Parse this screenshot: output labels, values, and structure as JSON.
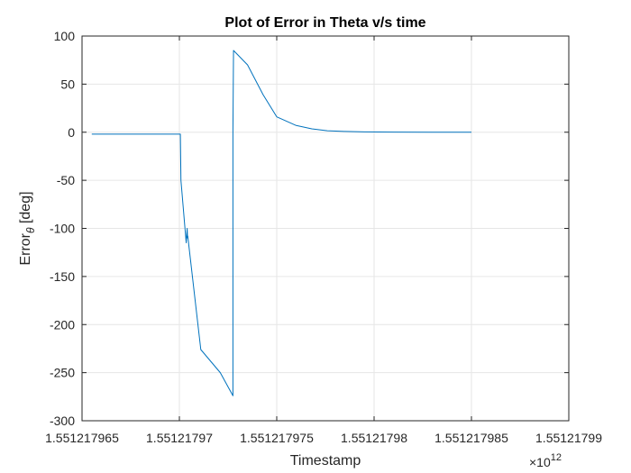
{
  "chart_data": {
    "type": "line",
    "title": "Plot of Error in Theta v/s time",
    "xlabel": "Timestamp",
    "ylabel_main": "Error",
    "ylabel_sub": "θ",
    "ylabel_unit": " [deg]",
    "x_exponent_base": "×10",
    "x_exponent_power": "12",
    "xlim": [
      1551217965000,
      1551217990000
    ],
    "ylim": [
      -300,
      100
    ],
    "grid": true,
    "series_color": "#0072BD",
    "x_ticks": [
      {
        "value": 1551217965000,
        "label": "1.551217965"
      },
      {
        "value": 1551217970000,
        "label": "1.55121797"
      },
      {
        "value": 1551217975000,
        "label": "1.551217975"
      },
      {
        "value": 1551217980000,
        "label": "1.55121798"
      },
      {
        "value": 1551217985000,
        "label": "1.551217985"
      },
      {
        "value": 1551217990000,
        "label": "1.55121799"
      }
    ],
    "y_ticks": [
      {
        "value": 100,
        "label": "100"
      },
      {
        "value": 50,
        "label": "50"
      },
      {
        "value": 0,
        "label": "0"
      },
      {
        "value": -50,
        "label": "-50"
      },
      {
        "value": -100,
        "label": "-100"
      },
      {
        "value": -150,
        "label": "-150"
      },
      {
        "value": -200,
        "label": "-200"
      },
      {
        "value": -250,
        "label": "-250"
      },
      {
        "value": -300,
        "label": "-300"
      }
    ],
    "series": [
      {
        "x": [
          1551217965500,
          1551217970050,
          1551217970080,
          1551217970350,
          1551217970400,
          1551217970420,
          1551217970430,
          1551217971100,
          1551217972100,
          1551217972750,
          1551217972750,
          1551217972780,
          1551217973500,
          1551217974300,
          1551217975000,
          1551217976000,
          1551217976800,
          1551217977600,
          1551217978500,
          1551217979500,
          1551217981000,
          1551217983000,
          1551217985000
        ],
        "y": [
          -2,
          -2,
          -50,
          -115,
          -100,
          -110,
          -108,
          -226,
          -250,
          -274,
          0,
          85,
          70,
          39,
          16,
          7,
          3.5,
          1.5,
          0.8,
          0.3,
          0.1,
          0,
          0
        ]
      }
    ]
  }
}
